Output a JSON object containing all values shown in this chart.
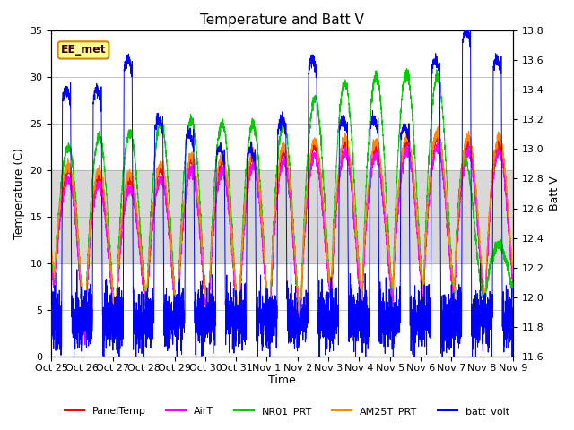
{
  "title": "Temperature and Batt V",
  "xlabel": "Time",
  "ylabel_left": "Temperature (C)",
  "ylabel_right": "Batt V",
  "annotation": "EE_met",
  "xlim": [
    0,
    15
  ],
  "ylim_left": [
    0,
    35
  ],
  "ylim_right": [
    11.6,
    13.8
  ],
  "xtick_labels": [
    "Oct 25",
    "Oct 26",
    "Oct 27",
    "Oct 28",
    "Oct 29",
    "Oct 30",
    "Oct 31",
    "Nov 1",
    "Nov 2",
    "Nov 3",
    "Nov 4",
    "Nov 5",
    "Nov 6",
    "Nov 7",
    "Nov 8",
    "Nov 9"
  ],
  "ytick_left": [
    0,
    5,
    10,
    15,
    20,
    25,
    30,
    35
  ],
  "ytick_right": [
    11.6,
    11.8,
    12.0,
    12.2,
    12.4,
    12.6,
    12.8,
    13.0,
    13.2,
    13.4,
    13.6,
    13.8
  ],
  "legend_entries": [
    "PanelTemp",
    "AirT",
    "NR01_PRT",
    "AM25T_PRT",
    "batt_volt"
  ],
  "legend_colors": [
    "#ff0000",
    "#ff00ff",
    "#00cc00",
    "#ff8800",
    "#0000ff"
  ],
  "bg_band_lower": 10,
  "bg_band_upper": 20,
  "bg_color": "#d8d8d8",
  "grid_color": "#aaaaaa",
  "figsize": [
    6.4,
    4.8
  ],
  "dpi": 100
}
